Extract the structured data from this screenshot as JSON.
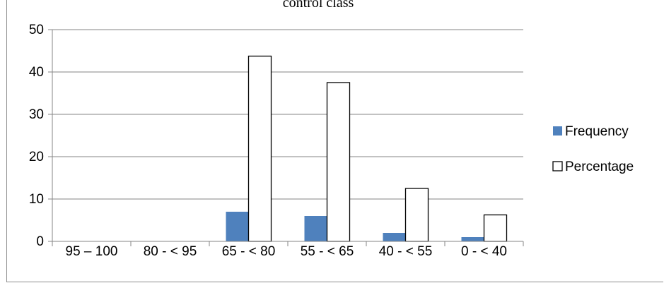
{
  "chart_data": {
    "type": "bar",
    "title": "control class",
    "xlabel": "",
    "ylabel": "",
    "categories": [
      "95 – 100",
      "80 - < 95",
      "65 - < 80",
      "55 - < 65",
      "40 - < 55",
      "0  - < 40"
    ],
    "series": [
      {
        "name": "Frequency",
        "values": [
          0,
          0,
          7,
          6,
          2,
          1
        ],
        "color": "#4f81bd"
      },
      {
        "name": "Percentage",
        "values": [
          0,
          0,
          43.75,
          37.5,
          12.5,
          6.25
        ],
        "color": "#ffffff",
        "stroke": "#000000"
      }
    ],
    "ylim": [
      0,
      50
    ],
    "yticks": [
      0,
      10,
      20,
      30,
      40,
      50
    ],
    "grid": true,
    "legend_position": "right"
  }
}
